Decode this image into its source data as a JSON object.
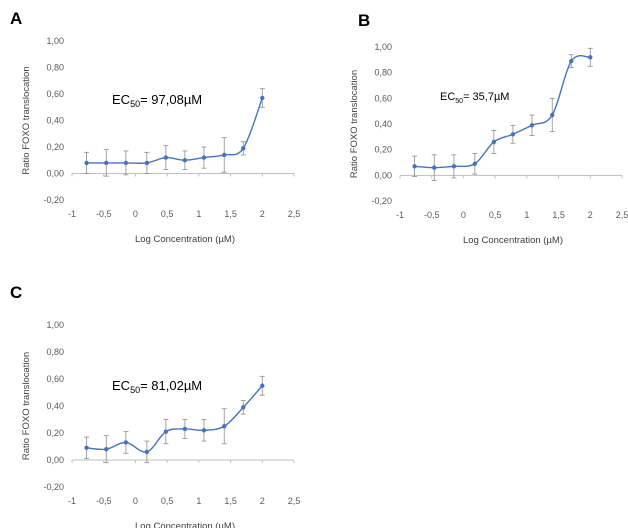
{
  "colors": {
    "series": "#4472C4",
    "error": "#8c8c8c",
    "axis": "#bfbfbf"
  },
  "chart_data": [
    {
      "type": "line",
      "panel": "A",
      "xlabel": "Log Concentration (µM)",
      "ylabel": "Ratio FOXO translocation",
      "xlim": [
        -1,
        2.5
      ],
      "ylim": [
        -0.2,
        1.0
      ],
      "xticks": [
        "-1",
        "-0,5",
        "0",
        "0,5",
        "1",
        "1,5",
        "2",
        "2,5"
      ],
      "yticks": [
        "-0,20",
        "0,00",
        "0,20",
        "0,40",
        "0,60",
        "0,80",
        "1,00"
      ],
      "annotation": {
        "prefix": "EC",
        "sub": "50",
        "suffix": "= 97,08µM"
      },
      "series": [
        {
          "x": [
            -0.77,
            -0.46,
            -0.15,
            0.18,
            0.48,
            0.78,
            1.08,
            1.4,
            1.7,
            2.0
          ],
          "y": [
            0.08,
            0.08,
            0.08,
            0.08,
            0.12,
            0.1,
            0.12,
            0.14,
            0.19,
            0.57
          ],
          "err": [
            0.08,
            0.1,
            0.09,
            0.08,
            0.09,
            0.07,
            0.08,
            0.13,
            0.05,
            0.07
          ]
        }
      ]
    },
    {
      "type": "line",
      "panel": "B",
      "xlabel": "Log Concentration (µM)",
      "ylabel": "Ratio FOXO translocation",
      "xlim": [
        -1,
        2.5
      ],
      "ylim": [
        -0.2,
        1.0
      ],
      "xticks": [
        "-1",
        "-0,5",
        "0",
        "0,5",
        "1",
        "1,5",
        "2",
        "2,5"
      ],
      "yticks": [
        "-0,20",
        "0,00",
        "0,20",
        "0,40",
        "0,60",
        "0,80",
        "1,00"
      ],
      "annotation": {
        "prefix": "EC",
        "sub": "50",
        "suffix": "= 35,7µM"
      },
      "series": [
        {
          "x": [
            -0.77,
            -0.46,
            -0.15,
            0.18,
            0.48,
            0.78,
            1.08,
            1.4,
            1.7,
            2.0
          ],
          "y": [
            0.07,
            0.06,
            0.07,
            0.09,
            0.26,
            0.32,
            0.39,
            0.47,
            0.89,
            0.92
          ],
          "err": [
            0.08,
            0.1,
            0.09,
            0.08,
            0.09,
            0.07,
            0.08,
            0.13,
            0.05,
            0.07
          ]
        }
      ]
    },
    {
      "type": "line",
      "panel": "C",
      "xlabel": "Log Concentration (µM)",
      "ylabel": "Ratio FOXO translocation",
      "xlim": [
        -1,
        2.5
      ],
      "ylim": [
        -0.2,
        1.0
      ],
      "xticks": [
        "-1",
        "-0,5",
        "0",
        "0,5",
        "1",
        "1,5",
        "2",
        "2,5"
      ],
      "yticks": [
        "-0,20",
        "0,00",
        "0,20",
        "0,40",
        "0,60",
        "0,80",
        "1,00"
      ],
      "annotation": {
        "prefix": "EC",
        "sub": "50",
        "suffix": "= 81,02µM"
      },
      "series": [
        {
          "x": [
            -0.77,
            -0.46,
            -0.15,
            0.18,
            0.48,
            0.78,
            1.08,
            1.4,
            1.7,
            2.0
          ],
          "y": [
            0.09,
            0.08,
            0.13,
            0.06,
            0.21,
            0.23,
            0.22,
            0.25,
            0.39,
            0.55
          ],
          "err": [
            0.08,
            0.1,
            0.08,
            0.08,
            0.09,
            0.07,
            0.08,
            0.13,
            0.05,
            0.07
          ]
        }
      ]
    }
  ]
}
